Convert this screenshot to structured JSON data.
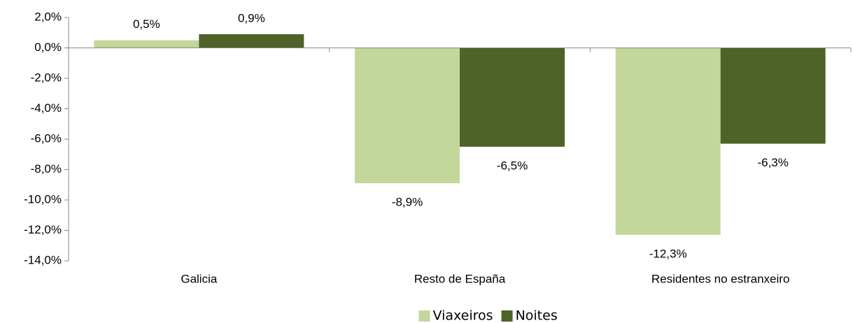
{
  "chart_data": {
    "type": "bar",
    "categories": [
      "Galicia",
      "Resto de España",
      "Residentes no estranxeiro"
    ],
    "series": [
      {
        "name": "Viaxeiros",
        "color": "#c4d79b",
        "values": [
          0.5,
          -8.9,
          -12.3
        ],
        "value_labels": [
          "0,5%",
          "-8,9%",
          "-12,3%"
        ]
      },
      {
        "name": "Noites",
        "color": "#4f6228",
        "values": [
          0.9,
          -6.5,
          -6.3
        ],
        "value_labels": [
          "0,9%",
          "-6,5%",
          "-6,3%"
        ]
      }
    ],
    "ylim": [
      -14,
      2
    ],
    "yticks": [
      {
        "value": 2,
        "label": "2,0%"
      },
      {
        "value": 0,
        "label": "0,0%"
      },
      {
        "value": -2,
        "label": "-2,0%"
      },
      {
        "value": -4,
        "label": "-4,0%"
      },
      {
        "value": -6,
        "label": "-6,0%"
      },
      {
        "value": -8,
        "label": "-8,0%"
      },
      {
        "value": -10,
        "label": "-10,0%"
      },
      {
        "value": -12,
        "label": "-12,0%"
      },
      {
        "value": -14,
        "label": "-14,0%"
      }
    ],
    "legend": "bottom"
  }
}
